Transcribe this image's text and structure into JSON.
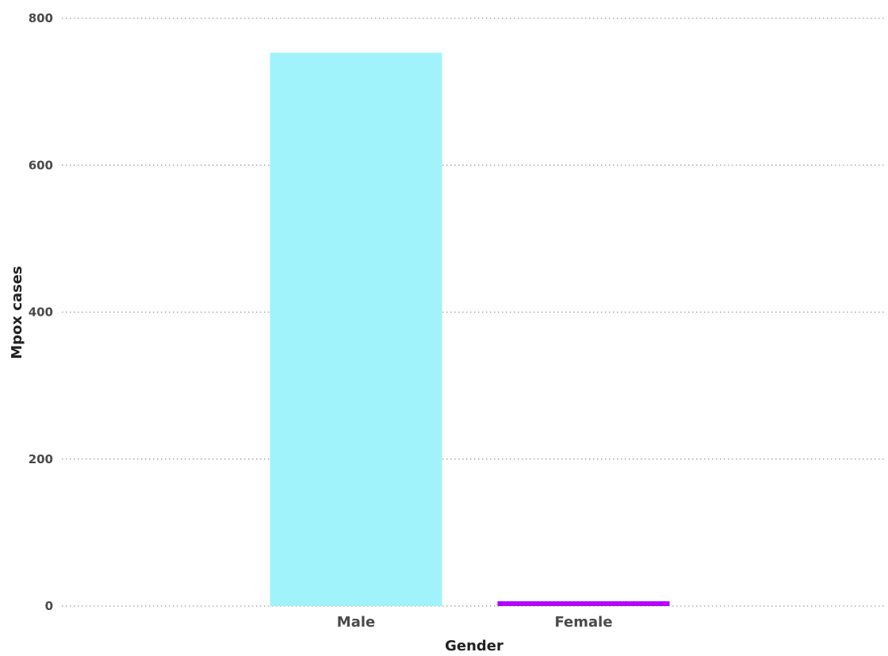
{
  "chart_data": {
    "type": "bar",
    "categories": [
      "Male",
      "Female"
    ],
    "values": [
      753,
      6
    ],
    "colors": [
      "#a0f2fb",
      "#b400ff"
    ],
    "xlabel": "Gender",
    "ylabel": "Mpox cases",
    "ylim": [
      0,
      800
    ],
    "yticks": [
      0,
      200,
      400,
      600,
      800
    ],
    "ytick_labels": [
      "0",
      "200",
      "400",
      "600",
      "800"
    ],
    "grid": true,
    "legend": "none"
  }
}
